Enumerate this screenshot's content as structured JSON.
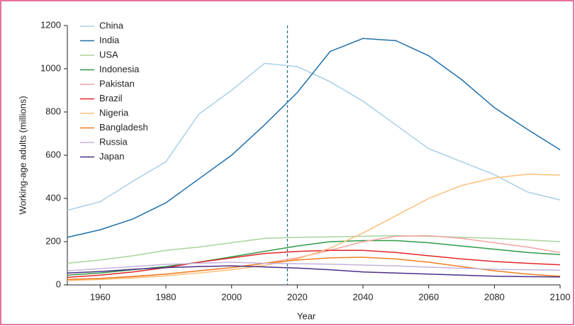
{
  "chart_data": {
    "type": "line",
    "x_label": "Year",
    "y_label": "Working-age adults (millions)",
    "x": [
      1950,
      1960,
      1970,
      1980,
      1990,
      2000,
      2010,
      2020,
      2030,
      2040,
      2050,
      2060,
      2070,
      2080,
      2090,
      2100
    ],
    "xlim": [
      1950,
      2100
    ],
    "xticks": [
      1960,
      1980,
      2000,
      2020,
      2040,
      2060,
      2080,
      2100
    ],
    "ylim": [
      0,
      1200
    ],
    "yticks": [
      0,
      200,
      400,
      600,
      800,
      1000,
      1200
    ],
    "reference_line": {
      "x": 2017,
      "style": "dashed",
      "color": "#2c6f86"
    },
    "legend": "top-left",
    "series": [
      {
        "name": "China",
        "color": "#a8cfe6",
        "values": [
          345,
          385,
          480,
          570,
          790,
          900,
          1025,
          1010,
          940,
          850,
          740,
          630,
          570,
          510,
          430,
          393
        ]
      },
      {
        "name": "India",
        "color": "#1f6fa8",
        "values": [
          220,
          255,
          305,
          380,
          490,
          600,
          740,
          890,
          1080,
          1140,
          1130,
          1060,
          950,
          820,
          720,
          625
        ]
      },
      {
        "name": "USA",
        "color": "#a9d39a",
        "values": [
          100,
          115,
          135,
          160,
          175,
          195,
          215,
          220,
          222,
          225,
          228,
          225,
          220,
          215,
          208,
          200
        ]
      },
      {
        "name": "Indonesia",
        "color": "#2e9a47",
        "values": [
          45,
          55,
          70,
          85,
          105,
          130,
          155,
          180,
          200,
          205,
          205,
          195,
          180,
          165,
          150,
          140
        ]
      },
      {
        "name": "Pakistan",
        "color": "#f4a3a0",
        "values": [
          25,
          30,
          40,
          50,
          65,
          80,
          100,
          125,
          160,
          200,
          225,
          228,
          215,
          195,
          175,
          150
        ]
      },
      {
        "name": "Brazil",
        "color": "#e3262a",
        "values": [
          35,
          45,
          60,
          80,
          105,
          125,
          145,
          155,
          160,
          160,
          150,
          135,
          120,
          108,
          100,
          93
        ]
      },
      {
        "name": "Nigeria",
        "color": "#fbbf78",
        "values": [
          20,
          25,
          32,
          42,
          55,
          70,
          90,
          120,
          170,
          240,
          320,
          400,
          460,
          495,
          512,
          508
        ]
      },
      {
        "name": "Bangladesh",
        "color": "#f07f1e",
        "values": [
          25,
          30,
          38,
          50,
          65,
          80,
          100,
          115,
          125,
          128,
          120,
          105,
          85,
          65,
          50,
          40
        ]
      },
      {
        "name": "Russia",
        "color": "#c4b3dc",
        "values": [
          65,
          75,
          85,
          95,
          100,
          105,
          100,
          98,
          96,
          92,
          88,
          82,
          77,
          72,
          70,
          68
        ]
      },
      {
        "name": "Japan",
        "color": "#4a2e88",
        "values": [
          55,
          62,
          72,
          80,
          85,
          88,
          83,
          78,
          70,
          60,
          55,
          50,
          45,
          40,
          38,
          37
        ]
      }
    ]
  }
}
